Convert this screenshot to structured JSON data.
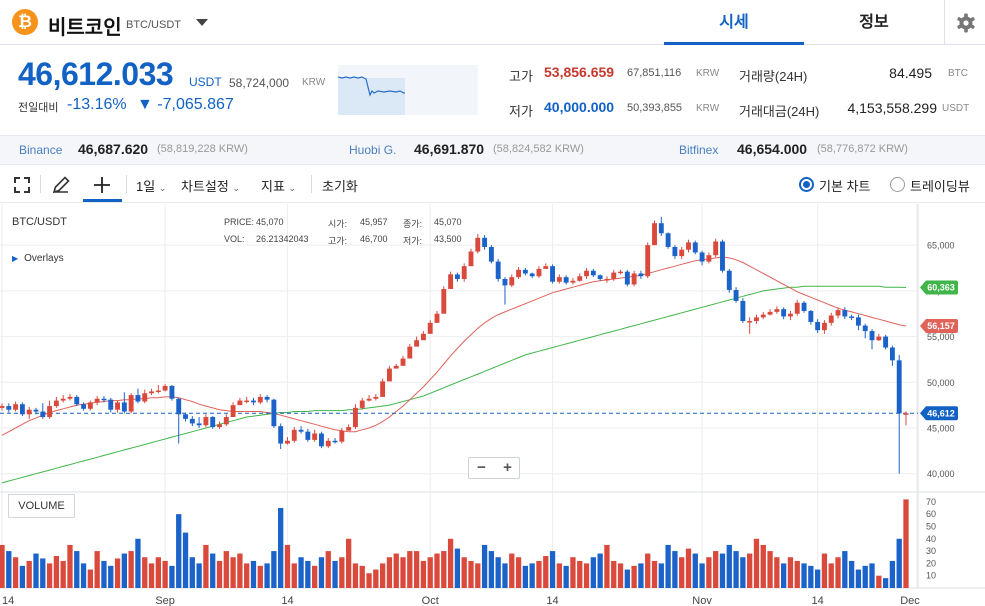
{
  "header": {
    "coin_symbol": "₿",
    "coin_name": "비트코인",
    "pair": "BTC/USDT",
    "tabs": [
      {
        "label": "시세"
      },
      {
        "label": "정보"
      }
    ]
  },
  "price": {
    "current": "46,612.033",
    "unit": "USDT",
    "krw": "58,724,000",
    "krw_unit": "KRW",
    "change_label": "전일대비",
    "change_pct": "-13.16%",
    "change_abs": "▼ -7,065.867"
  },
  "stats": {
    "high_label": "고가",
    "high": "53,856.659",
    "high_krw": "67,851,116",
    "high_krw_unit": "KRW",
    "low_label": "저가",
    "low": "40,000.000",
    "low_krw": "50,393,855",
    "low_krw_unit": "KRW",
    "vol_label": "거래량(24H)",
    "vol": "84.495",
    "vol_unit": "BTC",
    "amount_label": "거래대금(24H)",
    "amount": "4,153,558.299",
    "amount_unit": "USDT"
  },
  "exchanges": [
    {
      "name": "Binance",
      "price": "46,687.620",
      "krw": "(58,819,228 KRW)"
    },
    {
      "name": "Huobi G.",
      "price": "46,691.870",
      "krw": "(58,824,582 KRW)"
    },
    {
      "name": "Bitfinex",
      "price": "46,654.000",
      "krw": "(58,776,872 KRW)"
    }
  ],
  "toolbar": {
    "interval": "1일",
    "chart_settings": "차트설정",
    "indicators": "지표",
    "reset": "초기화",
    "basic_chart": "기본 차트",
    "tradingview": "트레이딩뷰"
  },
  "chart": {
    "title": "BTC/USDT",
    "overlays": "Overlays",
    "ohlc": {
      "price_label": "PRICE:",
      "price": "45,070",
      "vol_label": "VOL:",
      "vol": "26.21342043",
      "open_label": "시가:",
      "open": "45,957",
      "high_label": "고가:",
      "high": "46,700",
      "close_label": "종가:",
      "close": "45,070",
      "low_label": "저가:",
      "low": "43,500"
    },
    "volume_label": "VOLUME",
    "price_axis": [
      "65,000",
      "60,000",
      "55,000",
      "50,000",
      "45,000",
      "40,000"
    ],
    "volume_axis": [
      "70",
      "60",
      "50",
      "40",
      "30",
      "20",
      "10"
    ],
    "date_axis": [
      "14",
      "Sep",
      "14",
      "Oct",
      "14",
      "Nov",
      "14",
      "Dec"
    ],
    "badges": {
      "ma_slow": "60,363",
      "ma_fast": "56,157",
      "last": "46,612"
    },
    "colors": {
      "up": "#d94a3d",
      "down": "#1c63c9",
      "ma_fast": "#e0635a",
      "ma_slow": "#3fb54a",
      "last": "#1261c4"
    }
  },
  "chart_data": {
    "type": "bar",
    "title": "BTC/USDT",
    "xlabel": "",
    "ylabel": "",
    "ylim": [
      38000,
      69500
    ],
    "series": [
      {
        "name": "",
        "values": [
          47200,
          47400,
          47000,
          47600,
          46500,
          47000,
          46800,
          46200,
          47400,
          48000,
          48200,
          48400,
          47600,
          47100,
          47800,
          48200,
          48100,
          47000,
          47800,
          46800,
          48600,
          47900,
          48800,
          49000,
          49100,
          49600,
          48200,
          46500,
          46000,
          45500,
          45300,
          46200,
          45100,
          45400,
          46200,
          47500,
          48000,
          48000,
          47800,
          48400,
          48100,
          45200,
          43300,
          43600,
          44800,
          44600,
          43700,
          44400,
          43000,
          43600,
          43500,
          44700,
          45100,
          47200,
          48000,
          48200,
          48400,
          50100,
          51500,
          51800,
          52600,
          53900,
          54600,
          55300,
          56500,
          57500,
          60200,
          61800,
          61300,
          62700,
          64300,
          65800,
          64800,
          63200,
          61300,
          60600,
          61500,
          62300,
          61900,
          61600,
          62400,
          62700,
          61000,
          61500,
          60900,
          61100,
          61600,
          62200,
          61700,
          61300,
          61300,
          62000,
          62100,
          60700,
          61900,
          61600,
          65000,
          67400,
          66300,
          64800,
          63800,
          64500,
          65300,
          64200,
          63200,
          63900,
          65400,
          62200,
          60100,
          58900,
          56700,
          56700,
          57100,
          57400,
          57700,
          58000,
          57200,
          57500,
          58700,
          57800,
          56600,
          55700,
          56500,
          57300,
          57900,
          57200,
          57100,
          56200,
          55600,
          54600,
          55000,
          53800,
          52400,
          46600
        ]
      },
      {
        "name": "",
        "values": [
          47400,
          47000,
          47600,
          46500,
          47000,
          46800,
          46200,
          47400,
          48000,
          48200,
          48400,
          47600,
          47100,
          47800,
          48200,
          48100,
          47000,
          47800,
          46800,
          48600,
          47900,
          48800,
          49000,
          49100,
          49600,
          48200,
          46500,
          46000,
          45500,
          45300,
          46200,
          45100,
          45400,
          46200,
          47500,
          48000,
          48000,
          47800,
          48400,
          48100,
          45200,
          43300,
          43600,
          44800,
          44600,
          43700,
          44400,
          43000,
          43600,
          43500,
          44700,
          45100,
          47200,
          48000,
          48200,
          48400,
          50100,
          51500,
          51800,
          52600,
          53900,
          54600,
          55300,
          56500,
          57500,
          60200,
          61800,
          61300,
          62700,
          64300,
          65800,
          64800,
          63200,
          61300,
          60600,
          61500,
          62300,
          61900,
          61600,
          62400,
          62700,
          61000,
          61500,
          60900,
          61100,
          61600,
          62200,
          61700,
          61300,
          61300,
          62000,
          62100,
          60700,
          61900,
          61600,
          65000,
          67400,
          66300,
          64800,
          63800,
          64500,
          65300,
          64200,
          63200,
          63900,
          65400,
          62200,
          60100,
          58900,
          56700,
          56700,
          57100,
          57400,
          57700,
          58000,
          57200,
          57500,
          58700,
          57800,
          56600,
          55700,
          56500,
          57300,
          57900,
          57200,
          57100,
          56200,
          55600,
          54600,
          55000,
          53800,
          52400,
          46600,
          46612
        ]
      },
      {
        "name": "",
        "values": [
          47700,
          47700,
          47900,
          47800,
          47300,
          47200,
          47700,
          48000,
          48400,
          48600,
          48700,
          48600,
          47800,
          48000,
          48500,
          48500,
          48300,
          48000,
          48900,
          48800,
          49300,
          49200,
          49300,
          49700,
          49800,
          49700,
          48300,
          46700,
          46300,
          46200,
          46500,
          46300,
          45700,
          46500,
          47800,
          48300,
          48400,
          48300,
          48700,
          48600,
          48200,
          45500,
          44000,
          45100,
          45200,
          44900,
          44800,
          44600,
          43900,
          43900,
          45000,
          45400,
          47600,
          48300,
          48600,
          48700,
          50400,
          51800,
          52000,
          52900,
          54200,
          55000,
          55600,
          56800,
          57800,
          60500,
          62100,
          62000,
          63000,
          64600,
          66200,
          66100,
          65000,
          63500,
          61500,
          61800,
          62600,
          62500,
          62000,
          62700,
          63000,
          62900,
          61800,
          61700,
          61400,
          61900,
          62500,
          62400,
          61800,
          61600,
          62300,
          62300,
          62300,
          62200,
          62200,
          65300,
          67700,
          68100,
          66400,
          65000,
          64800,
          65600,
          65500,
          64400,
          64200,
          65700,
          65600,
          62400,
          60400,
          59200,
          57100,
          57400,
          57700,
          58000,
          58300,
          58200,
          57800,
          59000,
          58900,
          57900,
          56900,
          56800,
          57600,
          58200,
          58200,
          57400,
          57400,
          56400,
          55800,
          55300,
          55200,
          54000,
          53000,
          46800
        ]
      },
      {
        "name": "",
        "values": [
          46900,
          46700,
          46800,
          46300,
          46000,
          46500,
          46000,
          46000,
          47200,
          47800,
          48000,
          47400,
          46900,
          46900,
          47500,
          47800,
          46700,
          46700,
          46600,
          46600,
          47700,
          47700,
          48600,
          48800,
          49000,
          48000,
          43300,
          45700,
          45200,
          45000,
          45100,
          44900,
          44900,
          45200,
          46200,
          47700,
          47700,
          47500,
          47600,
          47800,
          45000,
          42700,
          43200,
          43400,
          44400,
          43500,
          43500,
          42800,
          42800,
          43300,
          43300,
          44800,
          44900,
          47000,
          47900,
          48000,
          49800,
          51300,
          51500,
          52400,
          53600,
          54300,
          55000,
          56300,
          57200,
          60000,
          61000,
          61000,
          61000,
          64000,
          64100,
          64500,
          63000,
          61000,
          58500,
          60400,
          61300,
          61700,
          61400,
          61400,
          62400,
          60800,
          60800,
          60700,
          60700,
          61000,
          61300,
          61500,
          61100,
          60900,
          61100,
          61800,
          60500,
          60500,
          61300,
          61400,
          65000,
          66000,
          64600,
          63500,
          63500,
          64200,
          64000,
          62800,
          63000,
          63700,
          62000,
          59800,
          58700,
          56500,
          55300,
          56400,
          56900,
          57300,
          57500,
          56900,
          56800,
          57300,
          57600,
          56300,
          55400,
          55300,
          56200,
          57000,
          56900,
          56800,
          55700,
          54800,
          53600,
          54500,
          53600,
          51800,
          40000,
          45300
        ]
      }
    ],
    "series_fields": [
      "open",
      "close",
      "high",
      "low"
    ],
    "volume": [
      35,
      30,
      25,
      18,
      22,
      28,
      24,
      20,
      26,
      22,
      35,
      30,
      20,
      15,
      30,
      22,
      18,
      24,
      28,
      30,
      40,
      25,
      20,
      25,
      22,
      18,
      60,
      45,
      25,
      20,
      35,
      28,
      22,
      30,
      25,
      28,
      20,
      22,
      18,
      20,
      30,
      65,
      35,
      20,
      25,
      22,
      18,
      25,
      30,
      22,
      25,
      40,
      20,
      18,
      12,
      15,
      20,
      25,
      28,
      25,
      30,
      30,
      22,
      25,
      28,
      30,
      40,
      32,
      25,
      22,
      20,
      35,
      30,
      25,
      20,
      28,
      25,
      18,
      20,
      22,
      26,
      30,
      20,
      18,
      25,
      22,
      20,
      25,
      28,
      35,
      22,
      20,
      15,
      18,
      20,
      28,
      22,
      20,
      35,
      30,
      25,
      32,
      28,
      20,
      25,
      30,
      28,
      35,
      30,
      25,
      28,
      40,
      35,
      30,
      25,
      20,
      25,
      22,
      20,
      18,
      15,
      28,
      20,
      25,
      30,
      22,
      15,
      18,
      20,
      10,
      8,
      22,
      40,
      72
    ],
    "ma_fast": [
      44200,
      44600,
      45000,
      45400,
      45800,
      46100,
      46400,
      46700,
      46900,
      47100,
      47300,
      47500,
      47600,
      47700,
      47800,
      47900,
      48000,
      48000,
      48100,
      48100,
      48200,
      48200,
      48300,
      48300,
      48400,
      48400,
      48300,
      48100,
      47900,
      47600,
      47400,
      47200,
      47000,
      46900,
      46800,
      46800,
      46800,
      46800,
      46800,
      46700,
      46600,
      46400,
      46200,
      46000,
      45800,
      45600,
      45400,
      45200,
      45000,
      44800,
      44700,
      44600,
      44600,
      44800,
      45000,
      45300,
      45700,
      46200,
      46800,
      47400,
      48100,
      48800,
      49500,
      50300,
      51100,
      52000,
      52900,
      53700,
      54500,
      55200,
      55900,
      56500,
      57000,
      57400,
      57700,
      58000,
      58300,
      58600,
      58900,
      59200,
      59500,
      59800,
      60000,
      60200,
      60400,
      60600,
      60800,
      61000,
      61100,
      61200,
      61300,
      61400,
      61500,
      61600,
      61700,
      61900,
      62100,
      62300,
      62500,
      62700,
      62900,
      63100,
      63300,
      63400,
      63500,
      63600,
      63700,
      63600,
      63400,
      63100,
      62700,
      62300,
      61900,
      61500,
      61100,
      60700,
      60300,
      59900,
      59600,
      59300,
      59000,
      58700,
      58400,
      58100,
      57900,
      57700,
      57500,
      57300,
      57100,
      56900,
      56700,
      56500,
      56300,
      56157
    ],
    "ma_slow": [
      39000,
      39200,
      39400,
      39600,
      39800,
      40000,
      40200,
      40400,
      40600,
      40800,
      41000,
      41200,
      41400,
      41600,
      41800,
      42000,
      42200,
      42400,
      42600,
      42800,
      43000,
      43200,
      43400,
      43600,
      43800,
      44000,
      44200,
      44400,
      44600,
      44800,
      45000,
      45200,
      45400,
      45600,
      45800,
      46000,
      46200,
      46300,
      46400,
      46500,
      46600,
      46700,
      46700,
      46800,
      46800,
      46800,
      46900,
      46900,
      46900,
      46900,
      46900,
      47000,
      47000,
      47100,
      47200,
      47300,
      47400,
      47500,
      47700,
      47900,
      48100,
      48300,
      48500,
      48800,
      49100,
      49400,
      49700,
      50000,
      50300,
      50600,
      50900,
      51200,
      51500,
      51800,
      52100,
      52400,
      52700,
      53000,
      53200,
      53400,
      53600,
      53800,
      54000,
      54200,
      54400,
      54600,
      54800,
      55000,
      55200,
      55400,
      55600,
      55800,
      56000,
      56200,
      56400,
      56600,
      56800,
      57000,
      57200,
      57400,
      57600,
      57800,
      58000,
      58200,
      58400,
      58600,
      58800,
      59000,
      59200,
      59400,
      59600,
      59800,
      60000,
      60100,
      60200,
      60300,
      60400,
      60400,
      60500,
      60500,
      60500,
      60500,
      60500,
      60500,
      60500,
      60500,
      60500,
      60500,
      60500,
      60500,
      60400,
      60400,
      60400,
      60363
    ]
  }
}
